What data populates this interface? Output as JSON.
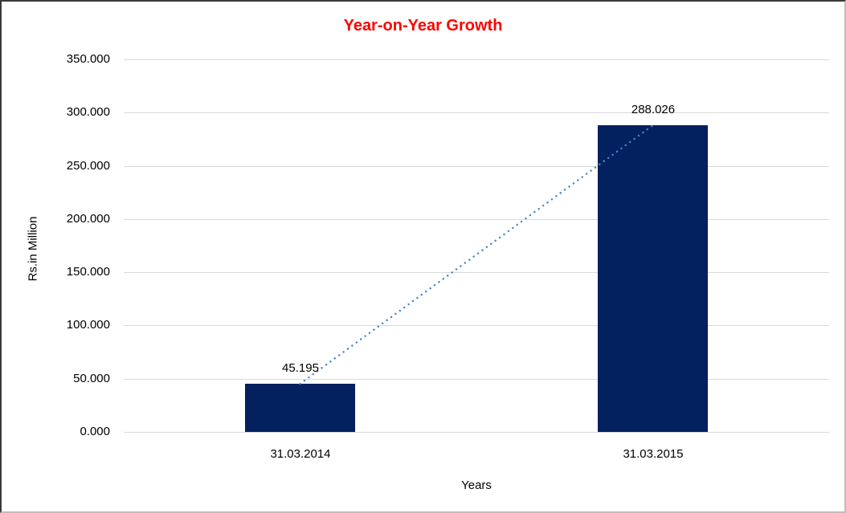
{
  "window": {
    "background": "#FFFFFF",
    "border_dark": "#3A3A3A",
    "border_light": "#BDBDBD"
  },
  "chart_data": {
    "type": "bar",
    "title": "Year-on-Year Growth",
    "xlabel": "Years",
    "ylabel": "Rs.in Million",
    "categories": [
      "31.03.2014",
      "31.03.2015"
    ],
    "values": [
      45.195,
      288.026
    ],
    "data_labels": [
      "45.195",
      "288.026"
    ],
    "ylim": [
      0,
      350
    ],
    "y_tick_values": [
      0,
      50,
      100,
      150,
      200,
      250,
      300,
      350
    ],
    "y_tick_labels": [
      "0.000",
      "50.000",
      "100.000",
      "150.000",
      "200.000",
      "250.000",
      "300.000",
      "350.000"
    ],
    "grid": "horizontal",
    "legend": "none",
    "trendline": {
      "type": "linear",
      "style": "dotted",
      "from_category": "31.03.2014",
      "to_category": "31.03.2015"
    },
    "colors": {
      "bar": "#02215E",
      "title": "#FF0000",
      "grid": "#D9D9D9",
      "text": "#000000",
      "trendline": "#4787C7",
      "background": "#FFFFFF"
    }
  }
}
